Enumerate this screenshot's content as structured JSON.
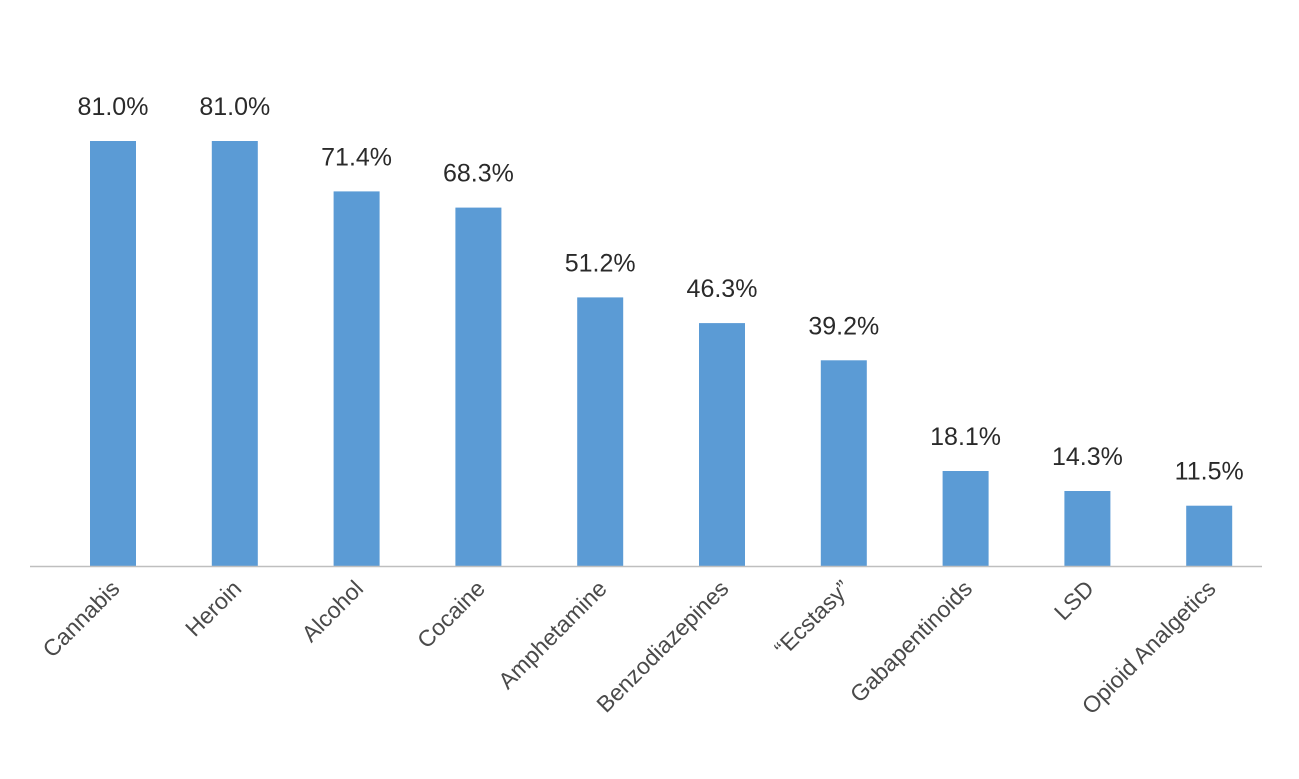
{
  "chart_data": {
    "type": "bar",
    "title": "",
    "xlabel": "",
    "ylabel": "",
    "categories": [
      "Cannabis",
      "Heroin",
      "Alcohol",
      "Cocaine",
      "Amphetamine",
      "Benzodiazepines",
      "“Ecstasy”",
      "Gabapentinoids",
      "LSD",
      "Opioid Analgetics"
    ],
    "values": [
      81.0,
      81.0,
      71.4,
      68.3,
      51.2,
      46.3,
      39.2,
      18.1,
      14.3,
      11.5
    ],
    "data_labels": [
      "81.0%",
      "81.0%",
      "71.4%",
      "68.3%",
      "51.2%",
      "46.3%",
      "39.2%",
      "18.1%",
      "14.3%",
      "11.5%"
    ],
    "unit": "%",
    "ylim": [
      0,
      81
    ],
    "grid": false,
    "legend": "none",
    "bar_color": "#5b9bd5",
    "axis_color": "#bfbfbf"
  }
}
